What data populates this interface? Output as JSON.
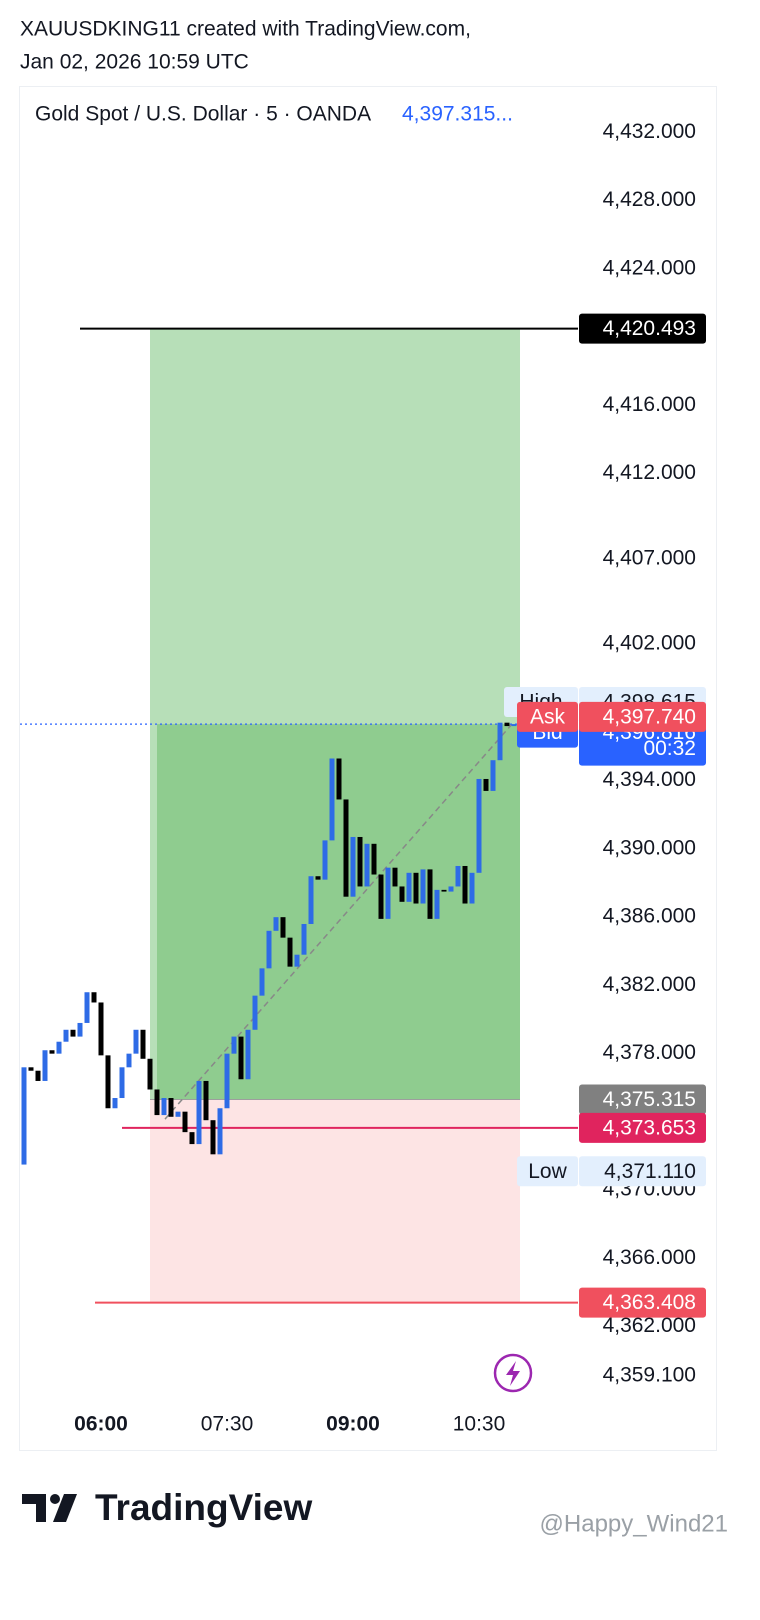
{
  "header": {
    "author_line": "XAUUSDKING11 created with TradingView.com,",
    "date_line": "Jan 02, 2026 10:59 UTC"
  },
  "chart_data": {
    "type": "candlestick",
    "legend": "Gold Spot / U.S. Dollar · 5 · OANDA",
    "legend_price": "4,397.315...",
    "categories": [
      null,
      null,
      null,
      null,
      null,
      null,
      null,
      null,
      null,
      null,
      null,
      "06:00",
      null,
      null,
      null,
      null,
      null,
      null,
      null,
      null,
      null,
      null,
      null,
      null,
      null,
      null,
      null,
      null,
      null,
      "07:30",
      null,
      null,
      null,
      null,
      null,
      null,
      null,
      null,
      null,
      null,
      null,
      null,
      null,
      null,
      null,
      null,
      null,
      "09:00",
      null,
      null,
      null,
      null,
      null,
      null,
      null,
      null,
      null,
      null,
      null,
      null,
      null,
      null,
      null,
      null,
      null,
      "10:30",
      null,
      null,
      null,
      null,
      null
    ],
    "open": [
      4371.5,
      4377.2,
      4377.0,
      4376.4,
      4378.2,
      4378.0,
      4378.7,
      4379.4,
      4379.0,
      4379.8,
      4381.6,
      4381.0,
      4377.9,
      4374.8,
      4375.4,
      4377.2,
      4378.0,
      4379.4,
      4377.7,
      4375.9,
      4374.4,
      4375.4,
      4374.3,
      4374.6,
      4373.4,
      4372.7,
      4376.4,
      4374.1,
      4372.1,
      4374.8,
      4378.0,
      4379.0,
      4376.5,
      4379.4,
      4381.4,
      4383.0,
      4385.2,
      4386.0,
      4384.8,
      4383.1,
      4383.8,
      4385.6,
      4388.4,
      4388.2,
      4390.5,
      4395.3,
      4392.9,
      4387.2,
      4390.7,
      4387.8,
      4390.3,
      4388.5,
      4385.9,
      4388.9,
      4387.8,
      4386.9,
      4388.6,
      4386.8,
      4388.8,
      4385.9,
      4387.6,
      4387.5,
      4387.8,
      4389.0,
      4386.8,
      4388.6,
      4394.1,
      4393.4,
      4395.2,
      4397.4,
      4397.2
    ],
    "high": {
      "name": "High",
      "value": 4398.615,
      "label": "4,398.615",
      "color": "#e3effd"
    },
    "low": {
      "name": "Low",
      "value": 4371.11,
      "label": "4,371.110",
      "color": "#e3effd"
    },
    "close": [
      4377.2,
      4377.0,
      4376.4,
      4378.2,
      4378.0,
      4378.7,
      4379.4,
      4379.0,
      4379.8,
      4381.6,
      4381.0,
      4377.9,
      4374.8,
      4375.4,
      4377.2,
      4378.0,
      4379.4,
      4377.7,
      4375.9,
      4374.4,
      4375.4,
      4374.3,
      4374.6,
      4373.4,
      4372.7,
      4376.4,
      4374.1,
      4372.1,
      4374.8,
      4378.0,
      4379.0,
      4376.5,
      4379.4,
      4381.4,
      4383.0,
      4385.2,
      4386.0,
      4384.8,
      4383.1,
      4383.8,
      4385.6,
      4388.4,
      4388.2,
      4390.5,
      4395.3,
      4392.9,
      4387.2,
      4390.7,
      4387.8,
      4390.3,
      4388.5,
      4385.9,
      4388.9,
      4387.8,
      4386.9,
      4388.6,
      4386.8,
      4388.8,
      4385.9,
      4387.6,
      4387.5,
      4387.8,
      4389.0,
      4386.8,
      4388.6,
      4394.1,
      4393.4,
      4395.2,
      4397.4,
      4397.2,
      4397.315
    ],
    "up_color": "#2e6be6",
    "down_color": "#000000",
    "down_wick_color": "#e04a4a",
    "ylim": [
      4357.7,
      4434.6
    ],
    "yticks": [
      {
        "value": 4432,
        "label": "4,432.000"
      },
      {
        "value": 4428,
        "label": "4,428.000"
      },
      {
        "value": 4424,
        "label": "4,424.000"
      },
      {
        "value": 4416,
        "label": "4,416.000"
      },
      {
        "value": 4412,
        "label": "4,412.000"
      },
      {
        "value": 4407,
        "label": "4,407.000"
      },
      {
        "value": 4402,
        "label": "4,402.000"
      },
      {
        "value": 4394,
        "label": "4,394.000"
      },
      {
        "value": 4390,
        "label": "4,390.000"
      },
      {
        "value": 4386,
        "label": "4,386.000"
      },
      {
        "value": 4382,
        "label": "4,382.000"
      },
      {
        "value": 4378,
        "label": "4,378.000"
      },
      {
        "value": 4370,
        "label": "4,370.000"
      },
      {
        "value": 4366,
        "label": "4,366.000"
      },
      {
        "value": 4362,
        "label": "4,362.000"
      },
      {
        "value": 4359.1,
        "label": "4,359.100"
      }
    ],
    "position": {
      "target": {
        "value": 4420.493,
        "label": "4,420.493",
        "color": "#000000"
      },
      "entry": {
        "value": 4375.315,
        "label": "4,375.315",
        "color": "#808080"
      },
      "stop": {
        "value": 4363.408,
        "label": "4,363.408",
        "color": "#f0505e"
      }
    },
    "alert": {
      "value": 4373.653,
      "label": "4,373.653",
      "color": "#e0245e"
    },
    "bid": {
      "name": "Bid",
      "value": 4396.816,
      "label": "4,396.816",
      "countdown": "00:32",
      "color": "#2962ff"
    },
    "ask": {
      "name": "Ask",
      "value": 4397.74,
      "label": "4,397.740",
      "color": "#f0505e"
    }
  },
  "footer": {
    "brand": "TradingView",
    "watermark": "@Happy_Wind21"
  }
}
